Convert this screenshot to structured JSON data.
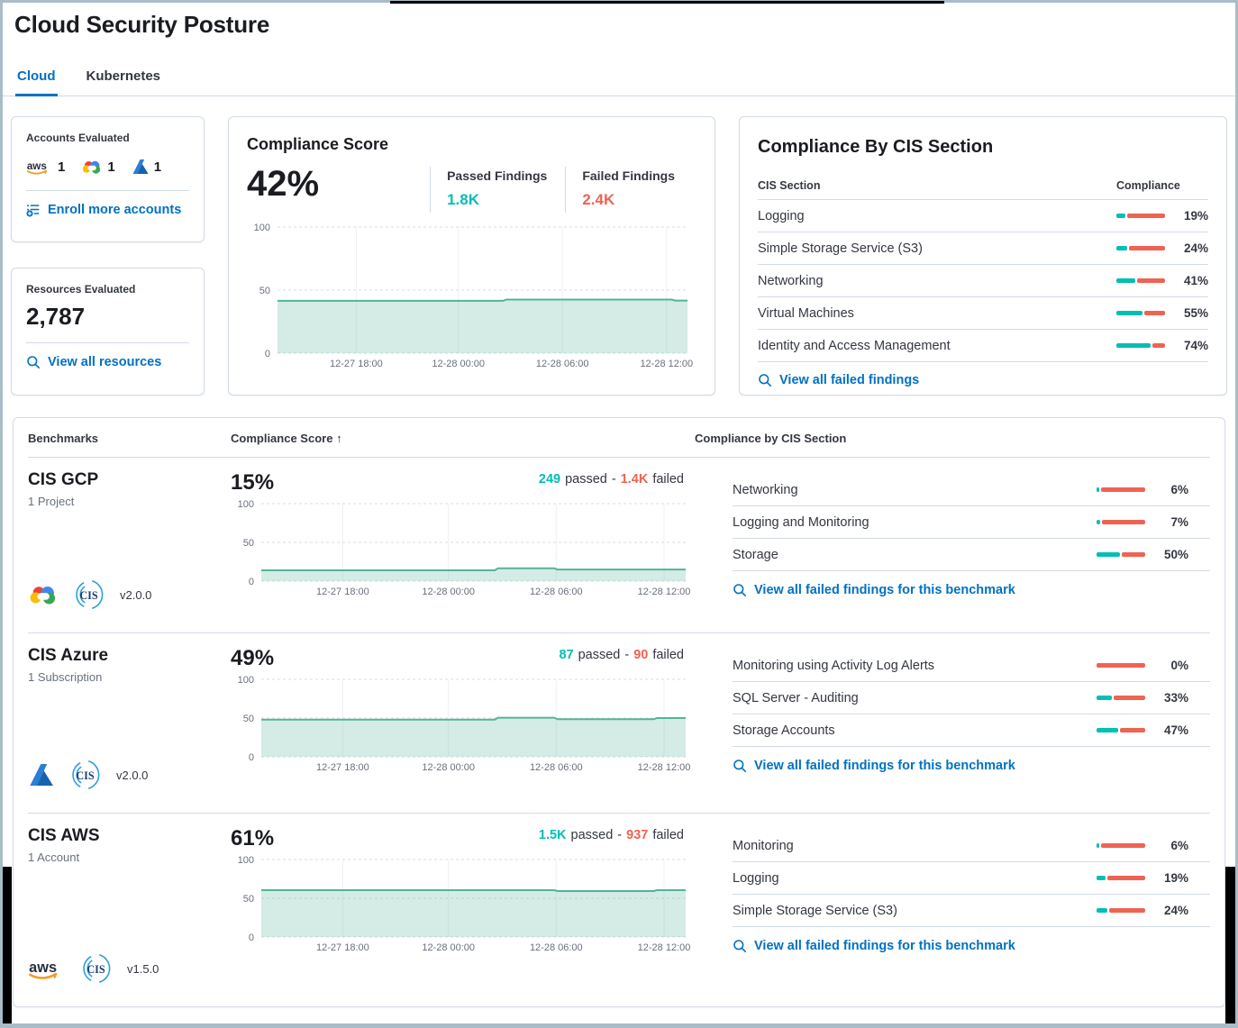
{
  "page": {
    "title": "Cloud Security Posture"
  },
  "tabs": {
    "cloud": "Cloud",
    "kubernetes": "Kubernetes"
  },
  "words": {
    "passed": "passed",
    "failed": "failed",
    "separator": "-"
  },
  "accounts_card": {
    "title": "Accounts Evaluated",
    "aws_count": "1",
    "gcp_count": "1",
    "azure_count": "1",
    "enroll_link": "Enroll more accounts"
  },
  "resources_card": {
    "title": "Resources Evaluated",
    "value": "2,787",
    "view_link": "View all resources"
  },
  "score_card": {
    "title": "Compliance Score",
    "score": "42%",
    "passed_label": "Passed Findings",
    "passed_value": "1.8K",
    "failed_label": "Failed Findings",
    "failed_value": "2.4K"
  },
  "cis_card": {
    "title": "Compliance By CIS Section",
    "section_header": "CIS Section",
    "compliance_header": "Compliance",
    "rows": [
      {
        "label": "Logging",
        "pct": 19,
        "pct_label": "19%"
      },
      {
        "label": "Simple Storage Service (S3)",
        "pct": 24,
        "pct_label": "24%"
      },
      {
        "label": "Networking",
        "pct": 41,
        "pct_label": "41%"
      },
      {
        "label": "Virtual Machines",
        "pct": 55,
        "pct_label": "55%"
      },
      {
        "label": "Identity and Access Management",
        "pct": 74,
        "pct_label": "74%"
      }
    ],
    "view_link": "View all failed findings"
  },
  "benchmarks": {
    "benchmarks_header": "Benchmarks",
    "score_header": "Compliance Score",
    "sort_arrow": "↑",
    "sections_header": "Compliance by CIS Section",
    "rows": [
      {
        "name": "CIS GCP",
        "subtitle": "1 Project",
        "version": "v2.0.0",
        "score": "15%",
        "passed": "249",
        "failed": "1.4K",
        "sections": [
          {
            "label": "Networking",
            "pct": 6,
            "pct_label": "6%"
          },
          {
            "label": "Logging and Monitoring",
            "pct": 7,
            "pct_label": "7%"
          },
          {
            "label": "Storage",
            "pct": 50,
            "pct_label": "50%"
          }
        ],
        "view_link": "View all failed findings for this benchmark"
      },
      {
        "name": "CIS Azure",
        "subtitle": "1 Subscription",
        "version": "v2.0.0",
        "score": "49%",
        "passed": "87",
        "failed": "90",
        "sections": [
          {
            "label": "Monitoring using Activity Log Alerts",
            "pct": 0,
            "pct_label": "0%"
          },
          {
            "label": "SQL Server - Auditing",
            "pct": 33,
            "pct_label": "33%"
          },
          {
            "label": "Storage Accounts",
            "pct": 47,
            "pct_label": "47%"
          }
        ],
        "view_link": "View all failed findings for this benchmark"
      },
      {
        "name": "CIS AWS",
        "subtitle": "1 Account",
        "version": "v1.5.0",
        "score": "61%",
        "passed": "1.5K",
        "failed": "937",
        "sections": [
          {
            "label": "Monitoring",
            "pct": 6,
            "pct_label": "6%"
          },
          {
            "label": "Logging",
            "pct": 19,
            "pct_label": "19%"
          },
          {
            "label": "Simple Storage Service (S3)",
            "pct": 24,
            "pct_label": "24%"
          }
        ],
        "view_link": "View all failed findings for this benchmark"
      }
    ]
  },
  "chart_data": [
    {
      "id": "overall-compliance-trend",
      "type": "area",
      "series_name": "Compliance Score %",
      "ylim": [
        0,
        100
      ],
      "yticks": [
        0,
        50,
        100
      ],
      "grid": true,
      "xticks": [
        {
          "pos": 0.192,
          "label": "12-27 18:00"
        },
        {
          "pos": 0.441,
          "label": "12-28 00:00"
        },
        {
          "pos": 0.695,
          "label": "12-28 06:00"
        },
        {
          "pos": 0.949,
          "label": "12-28 12:00"
        }
      ],
      "points": [
        [
          0,
          41.5
        ],
        [
          0.55,
          41.5
        ],
        [
          0.558,
          42.5
        ],
        [
          0.962,
          42.5
        ],
        [
          0.97,
          41.7
        ],
        [
          1,
          41.7
        ]
      ]
    },
    {
      "id": "cis-gcp-trend",
      "type": "area",
      "series_name": "CIS GCP Compliance %",
      "ylim": [
        0,
        100
      ],
      "yticks": [
        0,
        50,
        100
      ],
      "grid": true,
      "xticks": [
        {
          "pos": 0.192,
          "label": "12-27 18:00"
        },
        {
          "pos": 0.441,
          "label": "12-28 00:00"
        },
        {
          "pos": 0.695,
          "label": "12-28 06:00"
        },
        {
          "pos": 0.949,
          "label": "12-28 12:00"
        }
      ],
      "points": [
        [
          0,
          14
        ],
        [
          0.55,
          14
        ],
        [
          0.558,
          16.5
        ],
        [
          0.69,
          16.5
        ],
        [
          0.698,
          15
        ],
        [
          1,
          15
        ]
      ]
    },
    {
      "id": "cis-azure-trend",
      "type": "area",
      "series_name": "CIS Azure Compliance %",
      "ylim": [
        0,
        100
      ],
      "yticks": [
        0,
        50,
        100
      ],
      "grid": true,
      "xticks": [
        {
          "pos": 0.192,
          "label": "12-27 18:00"
        },
        {
          "pos": 0.441,
          "label": "12-28 00:00"
        },
        {
          "pos": 0.695,
          "label": "12-28 06:00"
        },
        {
          "pos": 0.949,
          "label": "12-28 12:00"
        }
      ],
      "points": [
        [
          0,
          48
        ],
        [
          0.55,
          48
        ],
        [
          0.558,
          50.5
        ],
        [
          0.69,
          50.5
        ],
        [
          0.698,
          48.5
        ],
        [
          0.925,
          48.5
        ],
        [
          0.932,
          50
        ],
        [
          1,
          50
        ]
      ]
    },
    {
      "id": "cis-aws-trend",
      "type": "area",
      "series_name": "CIS AWS Compliance %",
      "ylim": [
        0,
        100
      ],
      "yticks": [
        0,
        50,
        100
      ],
      "grid": true,
      "xticks": [
        {
          "pos": 0.192,
          "label": "12-27 18:00"
        },
        {
          "pos": 0.441,
          "label": "12-28 00:00"
        },
        {
          "pos": 0.695,
          "label": "12-28 06:00"
        },
        {
          "pos": 0.949,
          "label": "12-28 12:00"
        }
      ],
      "points": [
        [
          0,
          60.5
        ],
        [
          0.69,
          60.5
        ],
        [
          0.698,
          59.3
        ],
        [
          0.925,
          59.3
        ],
        [
          0.932,
          60.5
        ],
        [
          1,
          60.5
        ]
      ]
    }
  ],
  "colors": {
    "primary_link": "#0071c2",
    "passed_teal": "#00bfb3",
    "failed_coral": "#ee6352",
    "chart_line": "#54b399",
    "chart_fill": "rgba(84,179,153,0.25)",
    "frame": "#a9bcc8"
  }
}
